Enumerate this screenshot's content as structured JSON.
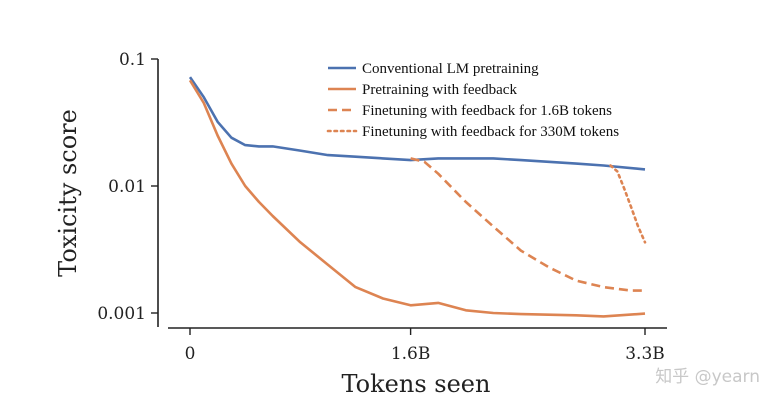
{
  "chart_data": {
    "type": "line",
    "xlabel": "Tokens seen",
    "ylabel": "Toxicity score",
    "yscale": "log",
    "xlim": [
      -0.08,
      3.5
    ],
    "ylim": [
      0.00085,
      0.1
    ],
    "x_ticks": [
      {
        "value": 0,
        "label": "0"
      },
      {
        "value": 1.6,
        "label": "1.6B"
      },
      {
        "value": 3.3,
        "label": "3.3B"
      }
    ],
    "y_ticks": [
      {
        "value": 0.1,
        "label": "0.1"
      },
      {
        "value": 0.01,
        "label": "0.01"
      },
      {
        "value": 0.001,
        "label": "0.001"
      }
    ],
    "legend_position": "top-right",
    "series": [
      {
        "name": "Conventional LM pretraining",
        "color": "#4c72b0",
        "style": "solid",
        "x": [
          0,
          0.1,
          0.2,
          0.3,
          0.4,
          0.5,
          0.6,
          0.8,
          1.0,
          1.2,
          1.4,
          1.6,
          1.8,
          2.0,
          2.2,
          2.4,
          2.6,
          2.8,
          3.0,
          3.3
        ],
        "y": [
          0.072,
          0.05,
          0.032,
          0.024,
          0.021,
          0.0205,
          0.0205,
          0.019,
          0.0175,
          0.017,
          0.0165,
          0.016,
          0.0165,
          0.0165,
          0.0165,
          0.016,
          0.0155,
          0.015,
          0.0145,
          0.0135
        ]
      },
      {
        "name": "Pretraining with feedback",
        "color": "#dd8452",
        "style": "solid",
        "x": [
          0,
          0.1,
          0.2,
          0.3,
          0.4,
          0.5,
          0.6,
          0.8,
          1.0,
          1.2,
          1.4,
          1.6,
          1.8,
          2.0,
          2.2,
          2.4,
          2.6,
          2.8,
          3.0,
          3.3
        ],
        "y": [
          0.068,
          0.045,
          0.025,
          0.015,
          0.01,
          0.0075,
          0.0058,
          0.0036,
          0.0024,
          0.0016,
          0.0013,
          0.00115,
          0.0012,
          0.00105,
          0.001,
          0.00098,
          0.00097,
          0.00096,
          0.00094,
          0.00099
        ]
      },
      {
        "name": "Finetuning with feedback for 1.6B tokens",
        "color": "#dd8452",
        "style": "dashed",
        "x": [
          1.6,
          1.7,
          1.8,
          2.0,
          2.2,
          2.4,
          2.6,
          2.8,
          3.0,
          3.2,
          3.3
        ],
        "y": [
          0.0165,
          0.0155,
          0.0125,
          0.0075,
          0.0048,
          0.0031,
          0.0023,
          0.0018,
          0.0016,
          0.0015,
          0.0015
        ]
      },
      {
        "name": "Finetuning with feedback for 330M tokens",
        "color": "#dd8452",
        "style": "dotted",
        "x": [
          3.05,
          3.1,
          3.15,
          3.2,
          3.25,
          3.3
        ],
        "y": [
          0.0145,
          0.013,
          0.0095,
          0.0068,
          0.0048,
          0.0036
        ]
      }
    ]
  },
  "watermark": "知乎 @yearn"
}
